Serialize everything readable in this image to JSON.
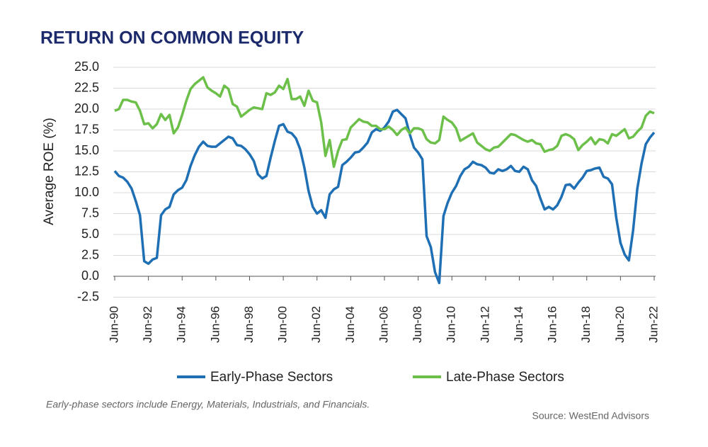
{
  "chart_data": {
    "type": "line",
    "title": "RETURN ON COMMON EQUITY",
    "ylabel": "Average ROE (%)",
    "footnote": "Early-phase sectors include Energy, Materials, Industrials, and Financials.",
    "source": "Source: WestEnd Advisors",
    "categories": [
      "Jun-90",
      null,
      null,
      null,
      null,
      null,
      null,
      null,
      "Jun-92",
      null,
      null,
      null,
      null,
      null,
      null,
      null,
      "Jun-94",
      null,
      null,
      null,
      null,
      null,
      null,
      null,
      "Jun-96",
      null,
      null,
      null,
      null,
      null,
      null,
      null,
      "Jun-98",
      null,
      null,
      null,
      null,
      null,
      null,
      null,
      "Jun-00",
      null,
      null,
      null,
      null,
      null,
      null,
      null,
      "Jun-02",
      null,
      null,
      null,
      null,
      null,
      null,
      null,
      "Jun-04",
      null,
      null,
      null,
      null,
      null,
      null,
      null,
      "Jun-06",
      null,
      null,
      null,
      null,
      null,
      null,
      null,
      "Jun-08",
      null,
      null,
      null,
      null,
      null,
      null,
      null,
      "Jun-10",
      null,
      null,
      null,
      null,
      null,
      null,
      null,
      "Jun-12",
      null,
      null,
      null,
      null,
      null,
      null,
      null,
      "Jun-14",
      null,
      null,
      null,
      null,
      null,
      null,
      null,
      "Jun-16",
      null,
      null,
      null,
      null,
      null,
      null,
      null,
      "Jun-18",
      null,
      null,
      null,
      null,
      null,
      null,
      null,
      "Jun-20",
      null,
      null,
      null,
      null,
      null,
      null,
      null,
      "Jun-22"
    ],
    "series": [
      {
        "name": "Early-Phase Sectors",
        "color": "#1f6fb5",
        "values": [
          12.6,
          12.0,
          11.8,
          11.3,
          10.5,
          9.0,
          7.3,
          1.8,
          1.5,
          2.0,
          2.2,
          7.3,
          8.0,
          8.3,
          9.8,
          10.3,
          10.6,
          11.5,
          13.2,
          14.5,
          15.5,
          16.1,
          15.6,
          15.5,
          15.5,
          15.9,
          16.3,
          16.7,
          16.5,
          15.7,
          15.6,
          15.2,
          14.6,
          13.8,
          12.2,
          11.7,
          12.0,
          14.2,
          16.2,
          18.0,
          18.2,
          17.3,
          17.1,
          16.5,
          15.2,
          13.0,
          10.2,
          8.3,
          7.5,
          7.9,
          7.0,
          9.8,
          10.4,
          10.7,
          13.3,
          13.7,
          14.2,
          14.8,
          14.9,
          15.4,
          16.0,
          17.2,
          17.6,
          17.4,
          17.8,
          18.5,
          19.7,
          19.9,
          19.4,
          18.9,
          17.0,
          15.4,
          14.8,
          14.0,
          4.8,
          3.5,
          0.5,
          -0.8,
          7.2,
          8.8,
          10.0,
          10.8,
          12.0,
          12.8,
          13.1,
          13.7,
          13.4,
          13.3,
          13.0,
          12.4,
          12.3,
          12.8,
          12.6,
          12.8,
          13.2,
          12.6,
          12.5,
          13.1,
          12.8,
          11.5,
          10.8,
          9.3,
          8.0,
          8.3,
          8.0,
          8.5,
          9.5,
          10.9,
          11.0,
          10.5,
          11.2,
          11.8,
          12.6,
          12.7,
          12.9,
          13.0,
          11.9,
          11.7,
          11.0,
          7.0,
          4.0,
          2.6,
          1.9,
          5.5,
          10.5,
          13.5,
          15.8,
          16.6,
          17.2
        ]
      },
      {
        "name": "Late-Phase Sectors",
        "color": "#6cc04a",
        "values": [
          19.8,
          20.0,
          21.1,
          21.1,
          20.9,
          20.8,
          19.8,
          18.2,
          18.3,
          17.7,
          18.2,
          19.4,
          18.7,
          19.3,
          17.1,
          17.8,
          19.3,
          21.0,
          22.4,
          23.0,
          23.4,
          23.8,
          22.6,
          22.2,
          21.9,
          21.5,
          22.8,
          22.4,
          20.6,
          20.3,
          19.1,
          19.5,
          19.9,
          20.2,
          20.1,
          20.0,
          21.9,
          21.7,
          22.0,
          22.8,
          22.4,
          23.6,
          21.2,
          21.2,
          21.5,
          20.4,
          22.2,
          21.0,
          20.8,
          18.4,
          14.4,
          16.3,
          13.1,
          15.0,
          16.3,
          16.4,
          17.8,
          18.3,
          18.8,
          18.5,
          18.4,
          18.0,
          18.0,
          17.6,
          17.6,
          17.9,
          17.5,
          16.9,
          17.5,
          17.8,
          17.1,
          17.7,
          17.7,
          17.5,
          16.4,
          16.0,
          15.9,
          16.3,
          19.1,
          18.7,
          18.4,
          17.7,
          16.2,
          16.5,
          16.8,
          17.1,
          16.0,
          15.6,
          15.2,
          15.0,
          15.4,
          15.5,
          16.0,
          16.5,
          17.0,
          16.9,
          16.6,
          16.3,
          16.1,
          16.3,
          15.9,
          15.8,
          14.9,
          15.1,
          15.2,
          15.6,
          16.8,
          17.0,
          16.8,
          16.4,
          15.1,
          15.7,
          16.1,
          16.6,
          15.8,
          16.4,
          16.3,
          15.9,
          17.0,
          16.8,
          17.2,
          17.6,
          16.5,
          16.7,
          17.3,
          17.8,
          19.2,
          19.7,
          19.5
        ]
      }
    ],
    "ylim": [
      -2.5,
      25
    ],
    "yticks": [
      -2.5,
      {
        "value": 0,
        "label": "0.0"
      },
      2.5,
      {
        "value": 5,
        "label": "5.0"
      },
      7.5,
      {
        "value": 10,
        "label": "10.0"
      },
      12.5,
      {
        "value": 15,
        "label": "15.0"
      },
      17.5,
      {
        "value": 20,
        "label": "20.0"
      },
      22.5,
      {
        "value": 25,
        "label": "25.0"
      }
    ],
    "grid": true,
    "legend": "bottom"
  }
}
